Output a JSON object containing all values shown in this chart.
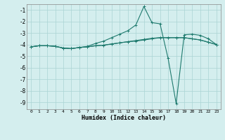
{
  "xlabel": "Humidex (Indice chaleur)",
  "bg_color": "#d4eeee",
  "grid_color": "#aad4d4",
  "line_color": "#1e7a6e",
  "xlim": [
    -0.5,
    23.5
  ],
  "ylim": [
    -9.6,
    -0.5
  ],
  "yticks": [
    -9,
    -8,
    -7,
    -6,
    -5,
    -4,
    -3,
    -2,
    -1
  ],
  "xticks": [
    0,
    1,
    2,
    3,
    4,
    5,
    6,
    7,
    8,
    9,
    10,
    11,
    12,
    13,
    14,
    15,
    16,
    17,
    18,
    19,
    20,
    21,
    22,
    23
  ],
  "line1_x": [
    0,
    1,
    2,
    3,
    4,
    5,
    6,
    7,
    8,
    9,
    10,
    11,
    12,
    13,
    14,
    15,
    16,
    17,
    18,
    19,
    20,
    21,
    22,
    23
  ],
  "line1_y": [
    -4.2,
    -4.1,
    -4.1,
    -4.15,
    -4.3,
    -4.35,
    -4.25,
    -4.2,
    -4.1,
    -4.05,
    -3.95,
    -3.85,
    -3.75,
    -3.65,
    -3.55,
    -3.45,
    -3.4,
    -3.4,
    -3.4,
    -3.4,
    -3.5,
    -3.6,
    -3.8,
    -4.0
  ],
  "line2_x": [
    0,
    1,
    2,
    3,
    4,
    5,
    6,
    7,
    8,
    9,
    10,
    11,
    12,
    13,
    14,
    15,
    16,
    17,
    18,
    19,
    20,
    21,
    22,
    23
  ],
  "line2_y": [
    -4.2,
    -4.1,
    -4.1,
    -4.15,
    -4.3,
    -4.35,
    -4.25,
    -4.15,
    -3.9,
    -3.7,
    -3.4,
    -3.1,
    -2.8,
    -2.3,
    -0.7,
    -2.1,
    -2.2,
    -5.2,
    -9.1,
    -3.15,
    -3.1,
    -3.2,
    -3.5,
    -4.0
  ],
  "line3_x": [
    0,
    1,
    2,
    3,
    4,
    5,
    6,
    7,
    8,
    9,
    10,
    11,
    12,
    13,
    14,
    15,
    16,
    17,
    18,
    19,
    20,
    21,
    22,
    23
  ],
  "line3_y": [
    -4.2,
    -4.1,
    -4.1,
    -4.15,
    -4.3,
    -4.35,
    -4.25,
    -4.2,
    -4.1,
    -4.05,
    -3.95,
    -3.85,
    -3.75,
    -3.7,
    -3.6,
    -3.5,
    -3.4,
    -3.4,
    -3.4,
    -3.4,
    -3.5,
    -3.6,
    -3.8,
    -4.0
  ]
}
